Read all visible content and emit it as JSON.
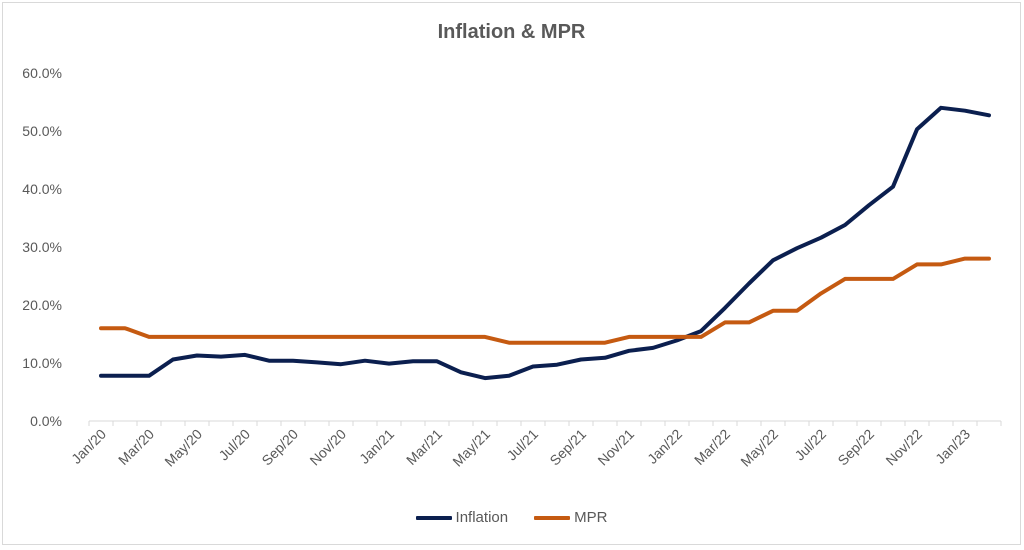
{
  "chart_data": {
    "type": "line",
    "title": "Inflation & MPR",
    "xlabel": "",
    "ylabel": "",
    "ylim": [
      0,
      60
    ],
    "y_ticks": [
      "0.0%",
      "10.0%",
      "20.0%",
      "30.0%",
      "40.0%",
      "50.0%",
      "60.0%"
    ],
    "x_tick_labels": [
      "Jan/20",
      "Mar/20",
      "May/20",
      "Jul/20",
      "Sep/20",
      "Nov/20",
      "Jan/21",
      "Mar/21",
      "May/21",
      "Jul/21",
      "Sep/21",
      "Nov/21",
      "Jan/22",
      "Mar/22",
      "May/22",
      "Jul/22",
      "Sep/22",
      "Nov/22",
      "Jan/23"
    ],
    "x": [
      "Jan/20",
      "Feb/20",
      "Mar/20",
      "Apr/20",
      "May/20",
      "Jun/20",
      "Jul/20",
      "Aug/20",
      "Sep/20",
      "Oct/20",
      "Nov/20",
      "Dec/20",
      "Jan/21",
      "Feb/21",
      "Mar/21",
      "Apr/21",
      "May/21",
      "Jun/21",
      "Jul/21",
      "Aug/21",
      "Sep/21",
      "Oct/21",
      "Nov/21",
      "Dec/21",
      "Jan/22",
      "Feb/22",
      "Mar/22",
      "Apr/22",
      "May/22",
      "Jun/22",
      "Jul/22",
      "Aug/22",
      "Sep/22",
      "Oct/22",
      "Nov/22",
      "Dec/22",
      "Jan/23",
      "Feb/23"
    ],
    "series": [
      {
        "name": "Inflation",
        "color": "#0b1f4f",
        "values": [
          7.8,
          7.8,
          7.8,
          10.6,
          11.3,
          11.1,
          11.4,
          10.4,
          10.4,
          10.1,
          9.8,
          10.4,
          9.9,
          10.3,
          10.3,
          8.4,
          7.4,
          7.8,
          9.4,
          9.7,
          10.6,
          10.9,
          12.1,
          12.6,
          13.9,
          15.5,
          19.5,
          23.7,
          27.7,
          29.8,
          31.6,
          33.8,
          37.2,
          40.4,
          50.3,
          54.0,
          53.5,
          52.7
        ]
      },
      {
        "name": "MPR",
        "color": "#c55a11",
        "values": [
          16,
          16,
          14.5,
          14.5,
          14.5,
          14.5,
          14.5,
          14.5,
          14.5,
          14.5,
          14.5,
          14.5,
          14.5,
          14.5,
          14.5,
          14.5,
          14.5,
          13.5,
          13.5,
          13.5,
          13.5,
          13.5,
          14.5,
          14.5,
          14.5,
          14.5,
          17,
          17,
          19,
          19,
          22,
          24.5,
          24.5,
          24.5,
          27,
          27,
          28,
          28
        ]
      }
    ],
    "grid": false,
    "legend": "bottom"
  }
}
